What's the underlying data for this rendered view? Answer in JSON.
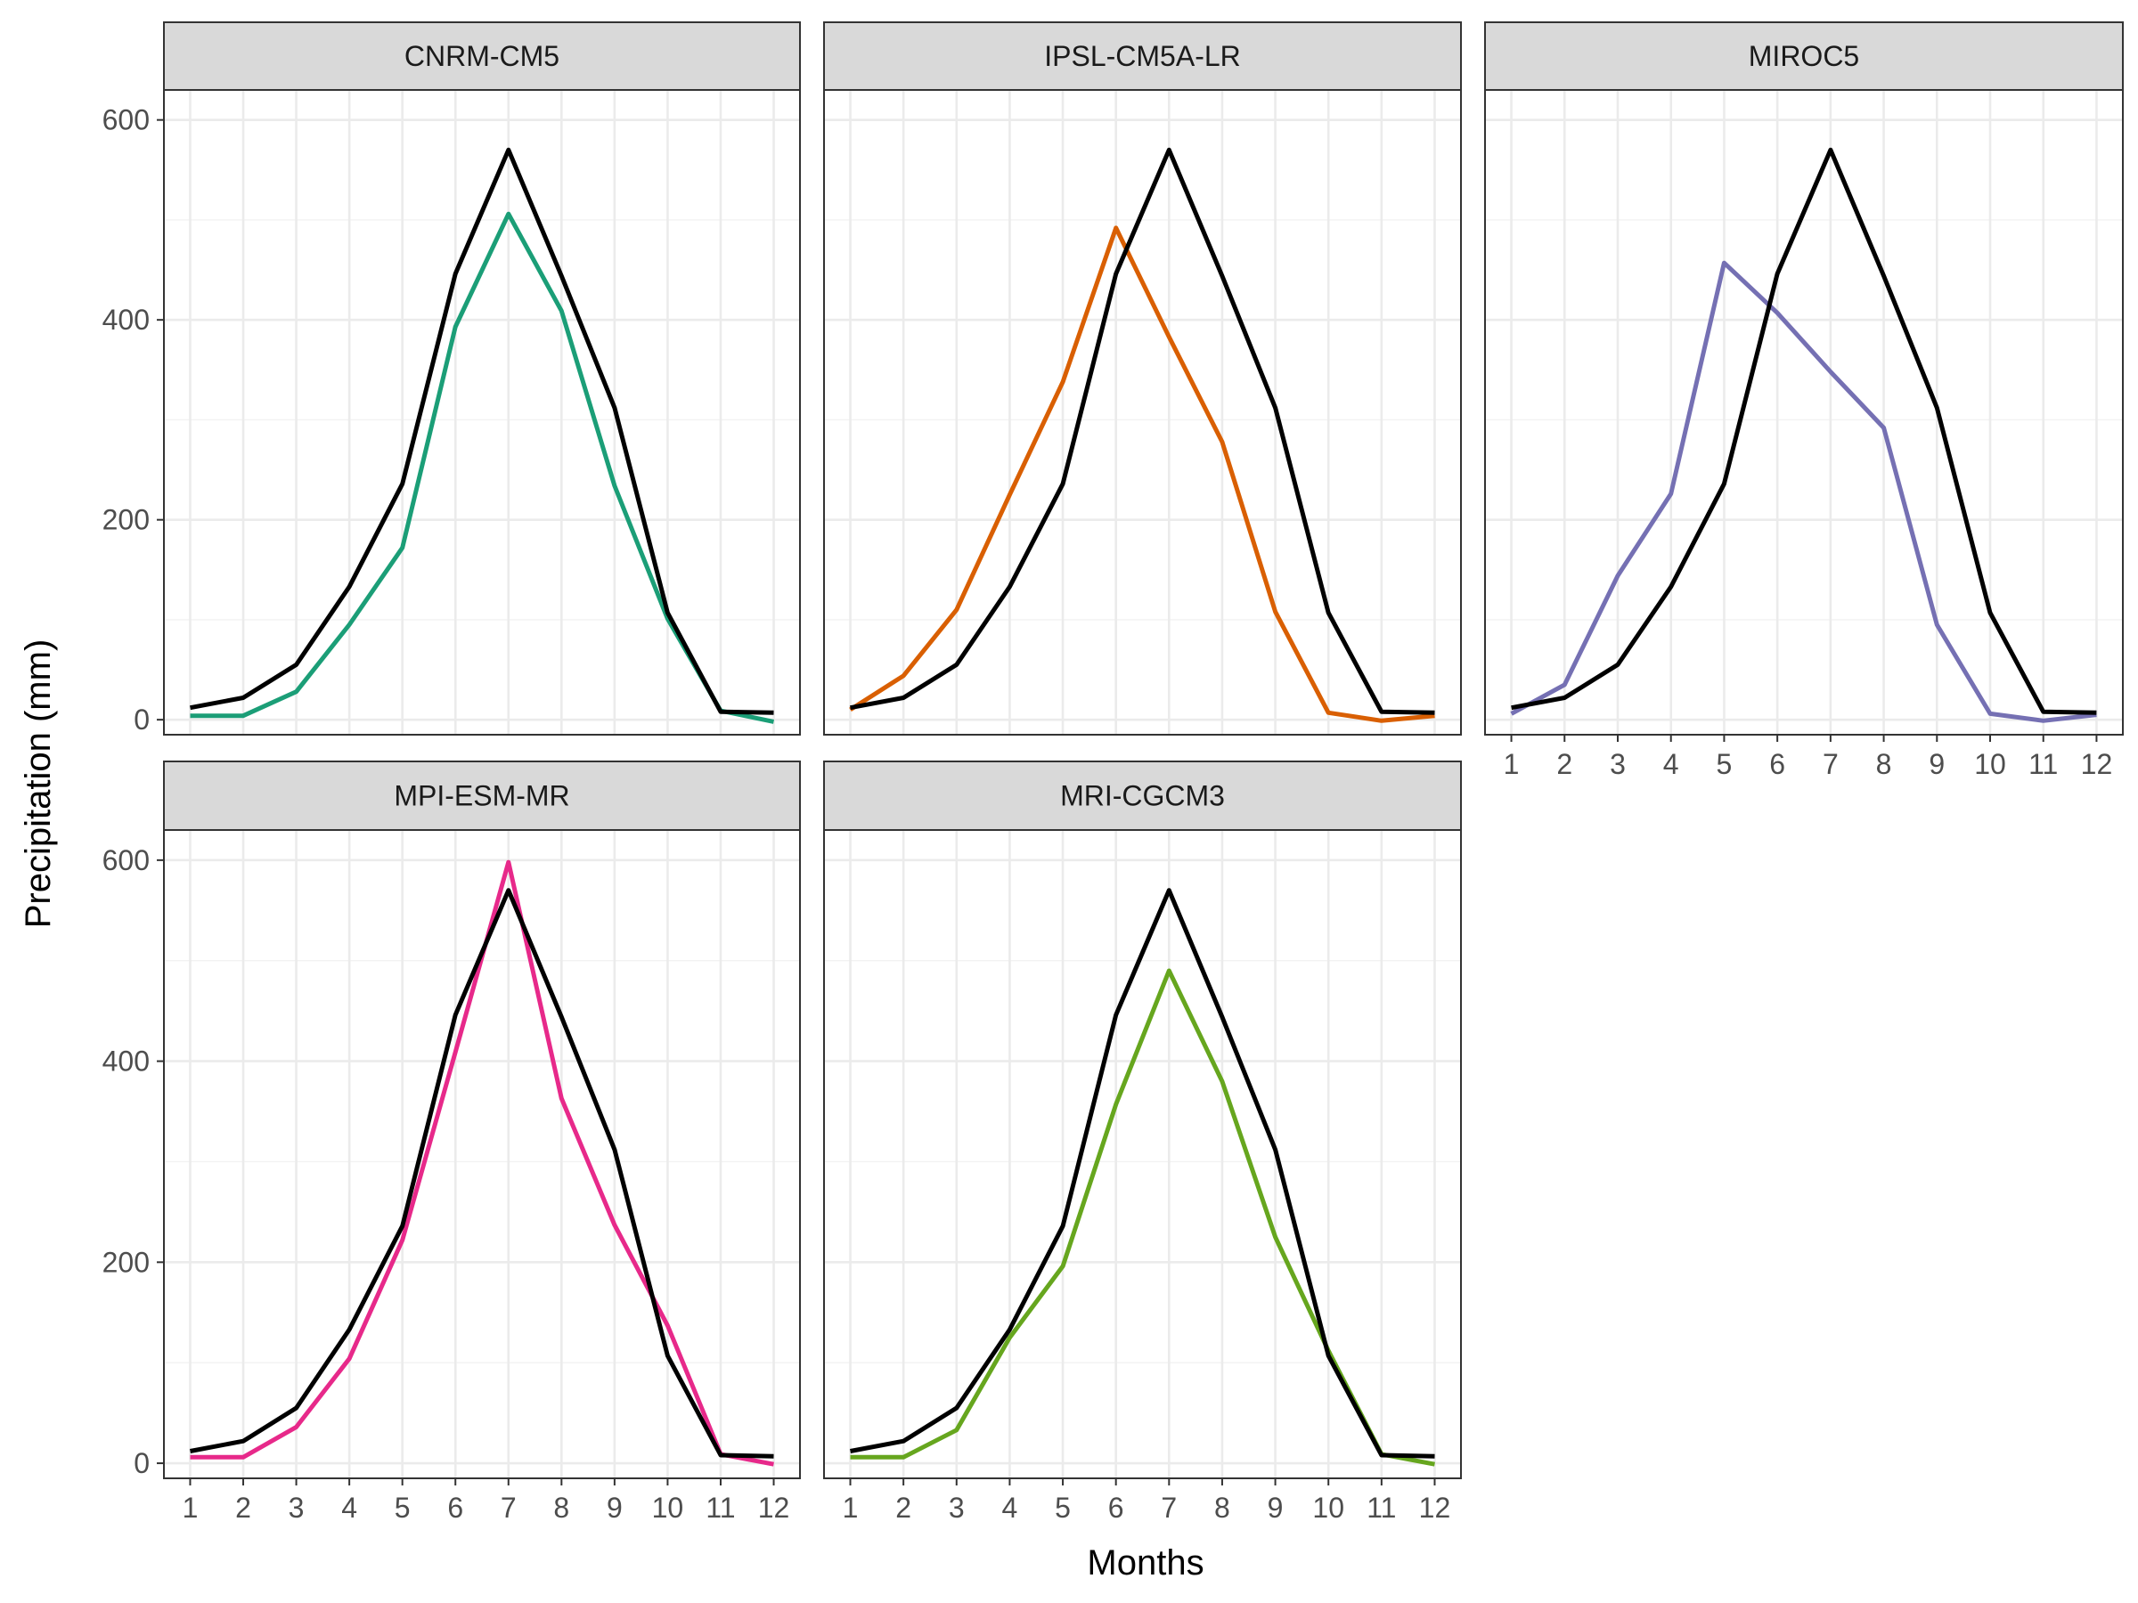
{
  "chart_data": {
    "type": "line",
    "ylabel": "Precipitation (mm)",
    "xlabel": "Months",
    "x": [
      1,
      2,
      3,
      4,
      5,
      6,
      7,
      8,
      9,
      10,
      11,
      12
    ],
    "x_ticks": [
      "1",
      "2",
      "3",
      "4",
      "5",
      "6",
      "7",
      "8",
      "9",
      "10",
      "11",
      "12"
    ],
    "ylim": [
      -15,
      630
    ],
    "y_ticks": [
      0,
      200,
      400,
      600
    ],
    "grid": true,
    "reference_color": "#000000",
    "reference_values": [
      12,
      22,
      55,
      133,
      236,
      446,
      570,
      444,
      312,
      107,
      8,
      7
    ],
    "panels": [
      {
        "title": "CNRM-CM5",
        "color": "#1b9e77",
        "values": [
          4,
          4,
          28,
          95,
          172,
          393,
          506,
          409,
          234,
          101,
          9,
          -2
        ]
      },
      {
        "title": "IPSL-CM5A-LR",
        "color": "#d95f02",
        "values": [
          10,
          44,
          110,
          225,
          338,
          492,
          383,
          278,
          108,
          7,
          -1,
          4
        ]
      },
      {
        "title": "MIROC5",
        "color": "#7570b3",
        "values": [
          6,
          35,
          144,
          226,
          457,
          407,
          348,
          292,
          95,
          6,
          -1,
          5
        ]
      },
      {
        "title": "MPI-ESM-MR",
        "color": "#e7298a",
        "values": [
          6,
          6,
          36,
          104,
          222,
          409,
          598,
          363,
          237,
          137,
          9,
          -1
        ]
      },
      {
        "title": "MRI-CGCM3",
        "color": "#66a61e",
        "values": [
          6,
          6,
          33,
          125,
          196,
          357,
          490,
          380,
          225,
          112,
          9,
          -1
        ]
      }
    ]
  }
}
